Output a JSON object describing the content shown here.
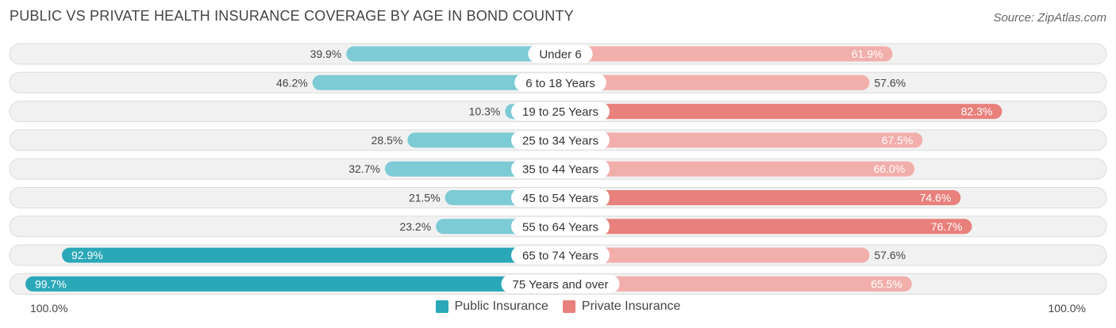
{
  "header": {
    "title": "PUBLIC VS PRIVATE HEALTH INSURANCE COVERAGE BY AGE IN BOND COUNTY",
    "source": "Source: ZipAtlas.com"
  },
  "axis": {
    "left_label": "100.0%",
    "right_label": "100.0%"
  },
  "colors": {
    "public_strong": "#2aa8b8",
    "public_light": "#7ccbd5",
    "private_strong": "#e8807c",
    "private_light": "#f2aeab",
    "row_bg": "#f1f1f1",
    "row_border": "#dcdcdc"
  },
  "chart_data": {
    "type": "bar",
    "orientation": "diverging-horizontal",
    "title": "PUBLIC VS PRIVATE HEALTH INSURANCE COVERAGE BY AGE IN BOND COUNTY",
    "xlim": [
      -100,
      100
    ],
    "categories": [
      "Under 6",
      "6 to 18 Years",
      "19 to 25 Years",
      "25 to 34 Years",
      "35 to 44 Years",
      "45 to 54 Years",
      "55 to 64 Years",
      "65 to 74 Years",
      "75 Years and over"
    ],
    "series": [
      {
        "name": "Public Insurance",
        "values": [
          39.9,
          46.2,
          10.3,
          28.5,
          32.7,
          21.5,
          23.2,
          92.9,
          99.7
        ],
        "labels": [
          "39.9%",
          "46.2%",
          "10.3%",
          "28.5%",
          "32.7%",
          "21.5%",
          "23.2%",
          "92.9%",
          "99.7%"
        ]
      },
      {
        "name": "Private Insurance",
        "values": [
          61.9,
          57.6,
          82.3,
          67.5,
          66.0,
          74.6,
          76.7,
          57.6,
          65.5
        ],
        "labels": [
          "61.9%",
          "57.6%",
          "82.3%",
          "67.5%",
          "66.0%",
          "74.6%",
          "76.7%",
          "57.6%",
          "65.5%"
        ]
      }
    ],
    "legend": "bottom-center"
  }
}
